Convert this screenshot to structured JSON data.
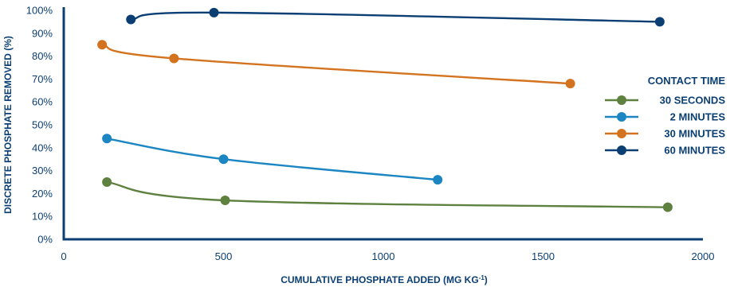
{
  "chart_data": {
    "type": "line",
    "xlabel": "CUMULATIVE PHOSPHATE ADDED (MG KG",
    "xlabel_superscript": "-1",
    "xlabel_suffix": ")",
    "ylabel": "DISCRETE PHOSPHATE REMOVED (%)",
    "xlim": [
      0,
      2000
    ],
    "ylim": [
      0,
      100
    ],
    "xticks": [
      0,
      500,
      1000,
      1500,
      2000
    ],
    "yticks": [
      0,
      10,
      20,
      30,
      40,
      50,
      60,
      70,
      80,
      90,
      100
    ],
    "ytick_labels": [
      "0%",
      "10%",
      "20%",
      "30%",
      "40%",
      "50%",
      "60%",
      "70%",
      "80%",
      "90%",
      "100%"
    ],
    "grid": false,
    "legend": {
      "title": "CONTACT TIME",
      "position": "right"
    },
    "series": [
      {
        "name": "30 SECONDS",
        "color": "#5e8140",
        "points": [
          [
            135,
            25
          ],
          [
            505,
            17
          ],
          [
            1890,
            14
          ]
        ]
      },
      {
        "name": "2 MINUTES",
        "color": "#1b86c2",
        "points": [
          [
            135,
            44
          ],
          [
            500,
            35
          ],
          [
            1170,
            26
          ]
        ]
      },
      {
        "name": "30 MINUTES",
        "color": "#d4731f",
        "points": [
          [
            120,
            85
          ],
          [
            345,
            79
          ],
          [
            1585,
            68
          ]
        ]
      },
      {
        "name": "60 MINUTES",
        "color": "#0b3f73",
        "points": [
          [
            210,
            96
          ],
          [
            470,
            99
          ],
          [
            1865,
            95
          ]
        ]
      }
    ]
  }
}
